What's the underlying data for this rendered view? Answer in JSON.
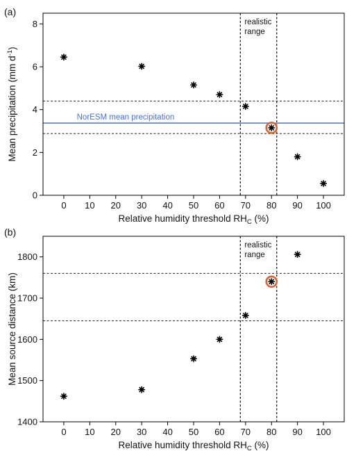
{
  "chart_data": [
    {
      "panel": "(a)",
      "type": "scatter",
      "xlabel": "Relative humidity threshold RH",
      "xlabel_sub": "C",
      "xlabel_unit": " (%)",
      "ylabel": "Mean precipitation (mm d",
      "ylabel_sup": "-1",
      "ylabel_end": ")",
      "xlim": [
        -8,
        108
      ],
      "ylim": [
        0,
        8.5
      ],
      "xticks": [
        0,
        10,
        20,
        30,
        40,
        50,
        60,
        70,
        80,
        90,
        100
      ],
      "yticks": [
        0,
        2,
        4,
        6,
        8
      ],
      "points": [
        {
          "x": 0,
          "y": 6.45
        },
        {
          "x": 30,
          "y": 6.02
        },
        {
          "x": 50,
          "y": 5.15
        },
        {
          "x": 60,
          "y": 4.7
        },
        {
          "x": 70,
          "y": 4.15
        },
        {
          "x": 80,
          "y": 3.15
        },
        {
          "x": 90,
          "y": 1.8
        },
        {
          "x": 100,
          "y": 0.55
        }
      ],
      "highlight": {
        "x": 80,
        "y": 3.15,
        "color": "#e0622b"
      },
      "hlines_dashed": [
        4.4,
        2.88
      ],
      "ref_line": {
        "y": 3.37,
        "label": "NorESM mean precipitation",
        "color": "#4a72d8"
      },
      "vlines_dashed": [
        68,
        82
      ],
      "range_label": [
        "realistic",
        "range"
      ]
    },
    {
      "panel": "(b)",
      "type": "scatter",
      "xlabel": "Relative humidity threshold RH",
      "xlabel_sub": "C",
      "xlabel_unit": " (%)",
      "ylabel": "Mean source distance (km)",
      "xlim": [
        -8,
        108
      ],
      "ylim": [
        1400,
        1850
      ],
      "xticks": [
        0,
        10,
        20,
        30,
        40,
        50,
        60,
        70,
        80,
        90,
        100
      ],
      "yticks": [
        1400,
        1500,
        1600,
        1700,
        1800
      ],
      "points": [
        {
          "x": 0,
          "y": 1462
        },
        {
          "x": 30,
          "y": 1478
        },
        {
          "x": 50,
          "y": 1553
        },
        {
          "x": 60,
          "y": 1600
        },
        {
          "x": 70,
          "y": 1658
        },
        {
          "x": 80,
          "y": 1740
        },
        {
          "x": 90,
          "y": 1806
        }
      ],
      "highlight": {
        "x": 80,
        "y": 1740,
        "color": "#e0622b"
      },
      "hlines_dashed": [
        1760,
        1645
      ],
      "vlines_dashed": [
        68,
        82
      ],
      "range_label": [
        "realistic",
        "range"
      ]
    }
  ]
}
